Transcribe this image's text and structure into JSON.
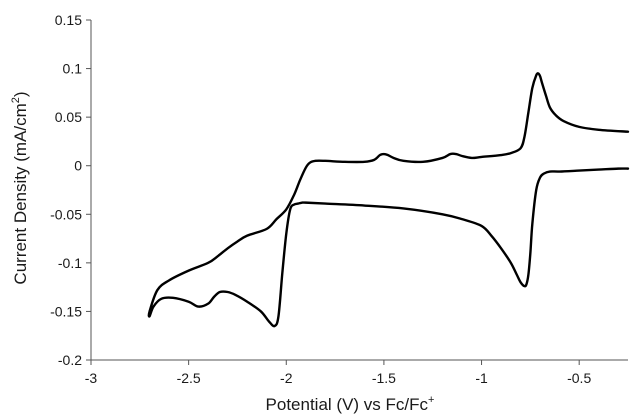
{
  "chart_data": {
    "type": "line",
    "title": "",
    "xlabel": "Potential (V) vs Fc/Fc",
    "xlabel_sup": "+",
    "ylabel": "Current Density (mA/cm",
    "ylabel_sup": "2",
    "ylabel_end": ")",
    "xlim": [
      -3,
      -0.25
    ],
    "ylim": [
      -0.2,
      0.15
    ],
    "x_ticks": [
      -3,
      -2.5,
      -2,
      -1.5,
      -1,
      -0.5
    ],
    "x_tick_labels": [
      "-3",
      "-2.5",
      "-2",
      "-1.5",
      "-1",
      "-0.5"
    ],
    "y_ticks": [
      0.15,
      0.1,
      0.05,
      0,
      -0.05,
      -0.1,
      -0.15,
      -0.2
    ],
    "y_tick_labels": [
      "0.15",
      "0.1",
      "0.05",
      "0",
      "-0.05",
      "-0.1",
      "-0.15",
      "-0.2"
    ],
    "grid": false,
    "legend": "none",
    "line_color": "#000000",
    "series": [
      {
        "x": [
          -0.25,
          -0.4,
          -0.5,
          -0.58,
          -0.62,
          -0.65,
          -0.67,
          -0.69,
          -0.7,
          -0.71,
          -0.72,
          -0.74,
          -0.76,
          -0.78,
          -0.8,
          -0.85,
          -0.9,
          -1.0,
          -1.05,
          -1.1,
          -1.13,
          -1.16,
          -1.2,
          -1.3,
          -1.4,
          -1.45,
          -1.48,
          -1.5,
          -1.52,
          -1.55,
          -1.6,
          -1.7,
          -1.8,
          -1.85,
          -1.88,
          -1.9,
          -1.93,
          -1.96,
          -2.0,
          -2.05,
          -2.1,
          -2.2,
          -2.25,
          -2.3,
          -2.35,
          -2.4,
          -2.5,
          -2.6,
          -2.66,
          -2.7,
          -2.7,
          -2.68,
          -2.64,
          -2.58,
          -2.5,
          -2.45,
          -2.4,
          -2.37,
          -2.34,
          -2.3,
          -2.26,
          -2.2,
          -2.13,
          -2.09,
          -2.06,
          -2.04,
          -2.02,
          -2.0,
          -1.98,
          -1.96,
          -1.94,
          -1.92,
          -1.9,
          -1.8,
          -1.6,
          -1.4,
          -1.2,
          -1.1,
          -1.0,
          -0.95,
          -0.9,
          -0.85,
          -0.82,
          -0.8,
          -0.78,
          -0.77,
          -0.76,
          -0.75,
          -0.74,
          -0.72,
          -0.7,
          -0.68,
          -0.65,
          -0.6,
          -0.5,
          -0.4,
          -0.3,
          -0.25
        ],
        "y": [
          0.035,
          0.037,
          0.04,
          0.046,
          0.052,
          0.06,
          0.072,
          0.085,
          0.092,
          0.095,
          0.093,
          0.08,
          0.055,
          0.03,
          0.018,
          0.013,
          0.011,
          0.009,
          0.008,
          0.01,
          0.012,
          0.012,
          0.008,
          0.004,
          0.005,
          0.008,
          0.011,
          0.012,
          0.011,
          0.006,
          0.004,
          0.004,
          0.005,
          0.005,
          0.003,
          -0.002,
          -0.015,
          -0.03,
          -0.045,
          -0.055,
          -0.065,
          -0.072,
          -0.078,
          -0.085,
          -0.093,
          -0.1,
          -0.108,
          -0.118,
          -0.128,
          -0.15,
          -0.155,
          -0.145,
          -0.137,
          -0.136,
          -0.14,
          -0.145,
          -0.142,
          -0.135,
          -0.13,
          -0.13,
          -0.133,
          -0.14,
          -0.15,
          -0.16,
          -0.165,
          -0.155,
          -0.11,
          -0.07,
          -0.045,
          -0.04,
          -0.039,
          -0.038,
          -0.038,
          -0.039,
          -0.041,
          -0.044,
          -0.05,
          -0.055,
          -0.062,
          -0.072,
          -0.085,
          -0.1,
          -0.112,
          -0.12,
          -0.124,
          -0.122,
          -0.112,
          -0.09,
          -0.06,
          -0.025,
          -0.012,
          -0.008,
          -0.006,
          -0.006,
          -0.005,
          -0.004,
          -0.003,
          -0.003
        ]
      }
    ]
  }
}
